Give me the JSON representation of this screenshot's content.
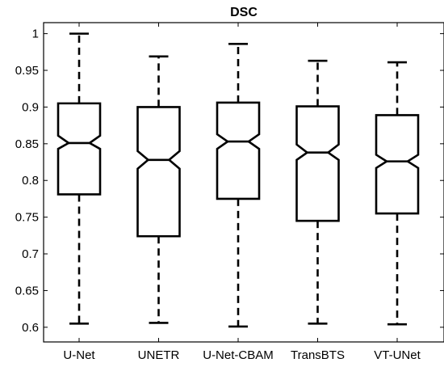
{
  "chart_data": {
    "type": "boxplot",
    "title": "DSC",
    "xlabel": "",
    "ylabel": "",
    "ylim": [
      0.58,
      1.015
    ],
    "yticks": [
      0.6,
      0.65,
      0.7,
      0.75,
      0.8,
      0.85,
      0.9,
      0.95,
      1
    ],
    "ytick_labels": [
      "0.6",
      "0.65",
      "0.7",
      "0.75",
      "0.8",
      "0.85",
      "0.9",
      "0.95",
      "1"
    ],
    "grid": false,
    "notched": true,
    "categories": [
      "U-Net",
      "UNETR",
      "U-Net-CBAM",
      "TransBTS",
      "VT-UNet"
    ],
    "boxes": [
      {
        "category": "U-Net",
        "whisker_low": 0.605,
        "q1": 0.781,
        "median": 0.851,
        "q3": 0.905,
        "whisker_high": 1.0,
        "notch_low": 0.843,
        "notch_high": 0.861
      },
      {
        "category": "UNETR",
        "whisker_low": 0.606,
        "q1": 0.724,
        "median": 0.828,
        "q3": 0.9,
        "whisker_high": 0.969,
        "notch_low": 0.816,
        "notch_high": 0.84
      },
      {
        "category": "U-Net-CBAM",
        "whisker_low": 0.601,
        "q1": 0.775,
        "median": 0.853,
        "q3": 0.906,
        "whisker_high": 0.986,
        "notch_low": 0.843,
        "notch_high": 0.863
      },
      {
        "category": "TransBTS",
        "whisker_low": 0.605,
        "q1": 0.745,
        "median": 0.838,
        "q3": 0.901,
        "whisker_high": 0.963,
        "notch_low": 0.828,
        "notch_high": 0.849
      },
      {
        "category": "VT-UNet",
        "whisker_low": 0.604,
        "q1": 0.755,
        "median": 0.826,
        "q3": 0.889,
        "whisker_high": 0.961,
        "notch_low": 0.817,
        "notch_high": 0.835
      }
    ]
  }
}
